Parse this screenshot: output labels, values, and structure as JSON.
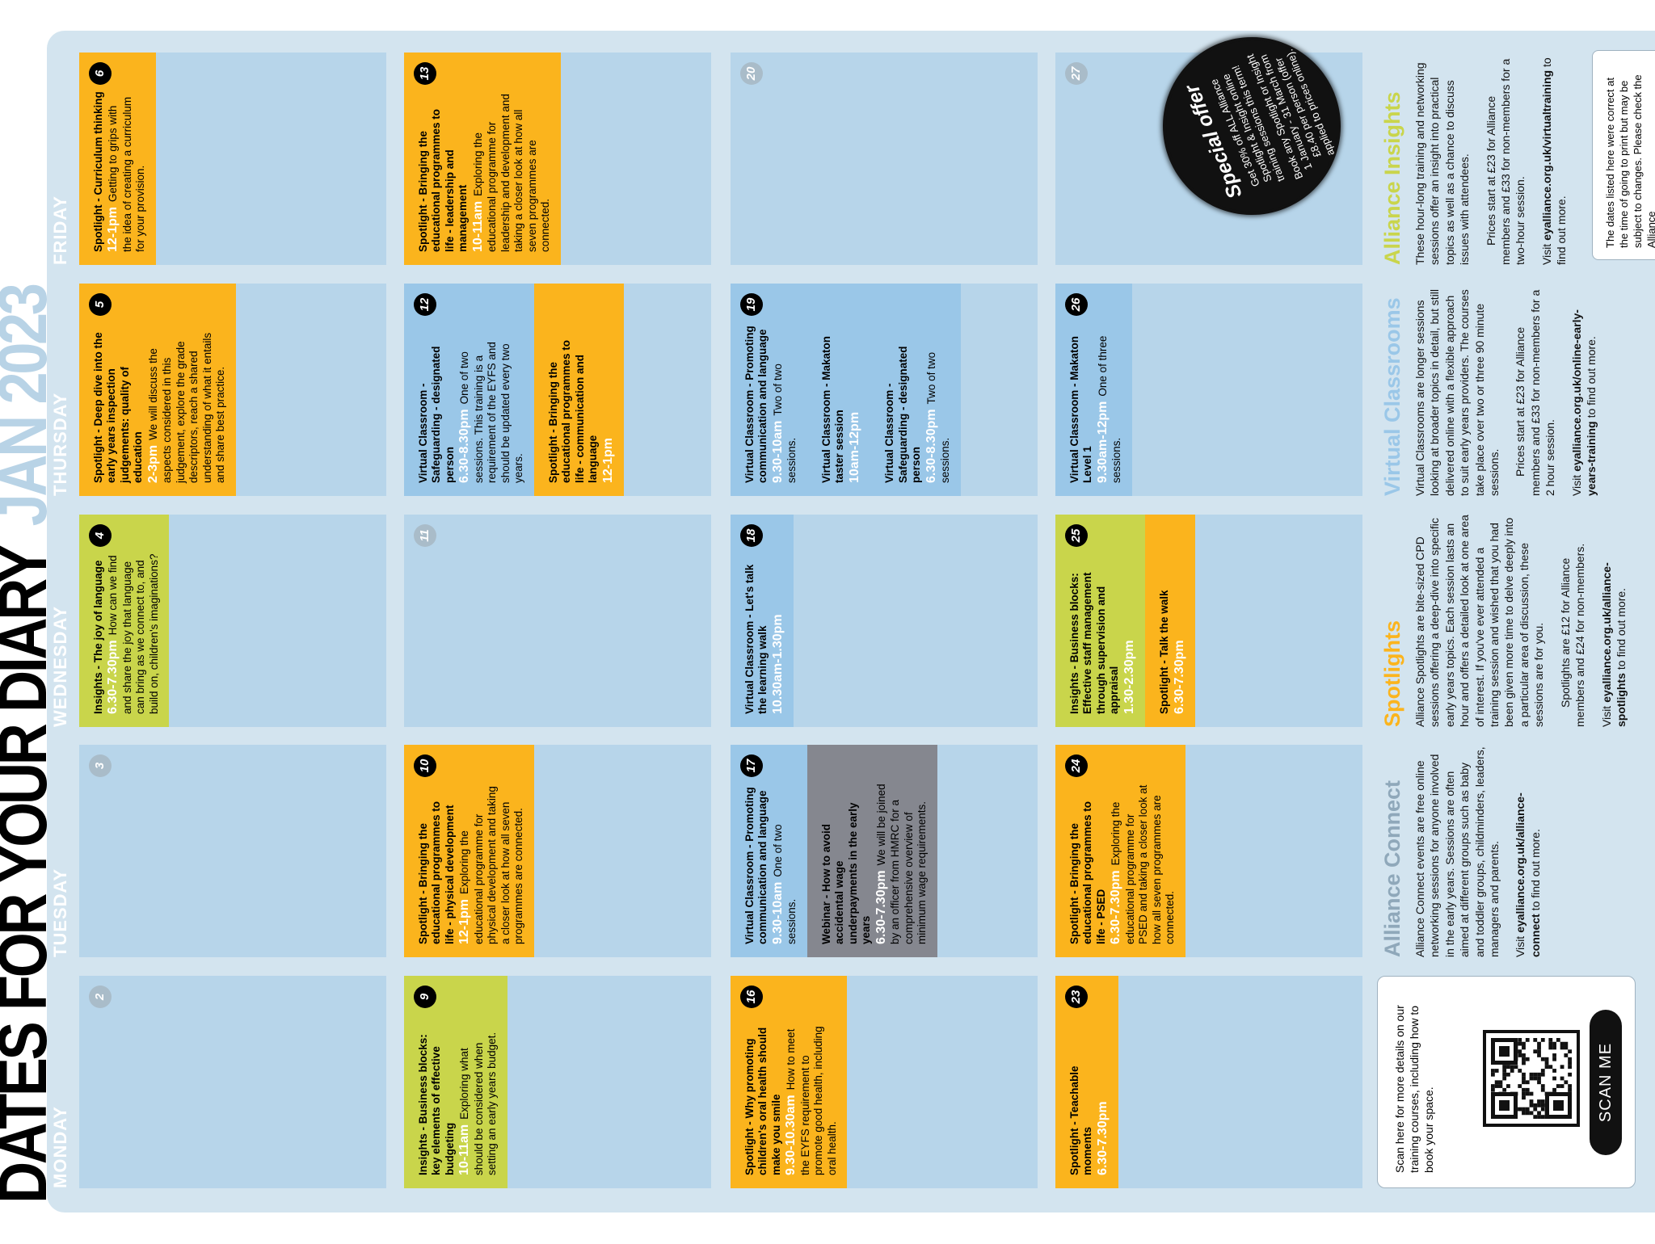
{
  "title": "DATES FOR YOUR DIARY",
  "title_date": "JAN 2023",
  "days": [
    "MONDAY",
    "TUESDAY",
    "WEDNESDAY",
    "THURSDAY",
    "FRIDAY"
  ],
  "weeks": [
    {
      "days": [
        {
          "date": 2,
          "events": []
        },
        {
          "date": 3,
          "events": []
        },
        {
          "date": 4,
          "events": [
            {
              "color": "#c9d54b",
              "title": "Insights - The joy of language",
              "time": "6.30-7.30pm",
              "desc": "How can we find and share the joy that language can bring as we connect to, and build on, children's imaginations?"
            }
          ]
        },
        {
          "date": 5,
          "events": [
            {
              "color": "#fbb41d",
              "title": "Spotlight - Deep dive into the early years inspection judgements: quality of education",
              "time": "2-3pm",
              "desc": "We will discuss the aspects considered in this judgement, explore the grade descriptors, reach a shared understanding of what it entails and share best practice."
            }
          ]
        },
        {
          "date": 6,
          "events": [
            {
              "color": "#fbb41d",
              "title": "Spotlight - Curriculum thinking",
              "time": "12-1pm",
              "desc": "Getting to grips with the idea of creating a curriculum for your provision."
            }
          ]
        }
      ]
    },
    {
      "days": [
        {
          "date": 9,
          "events": [
            {
              "color": "#c9d54b",
              "title": "Insights - Business blocks: key elements of effective budgeting",
              "time": "10-11am",
              "desc": "Exploring what should be considered when setting an early years budget."
            }
          ]
        },
        {
          "date": 10,
          "events": [
            {
              "color": "#fbb41d",
              "title": "Spotlight - Bringing the educational programmes to life - physical development",
              "time": "12-1pm",
              "desc": "Exploring the educational programme for physical development and taking a closer look at how all seven programmes are connected."
            }
          ]
        },
        {
          "date": 11,
          "events": []
        },
        {
          "date": 12,
          "events": [
            {
              "color": "#9ac7e8",
              "title": "Virtual Classroom - Safeguarding - designated person",
              "time": "6.30-8.30pm",
              "desc": "One of two sessions. This training is a requirement of the EYFS and should be updated every two years."
            },
            {
              "color": "#fbb41d",
              "title": "Spotlight - Bringing the educational programmes to life - communication and language",
              "time": "12-1pm"
            }
          ]
        },
        {
          "date": 13,
          "events": [
            {
              "color": "#fbb41d",
              "title": "Spotlight - Bringing the educational programmes to life - leadership and management",
              "time": "10-11am",
              "desc": "Exploring the educational programme for leadership and development and taking a closer look at how all seven programmes are connected."
            }
          ]
        }
      ]
    },
    {
      "days": [
        {
          "date": 16,
          "events": [
            {
              "color": "#fbb41d",
              "title": "Spotlight - Why promoting children's oral health should make you smile",
              "time": "9.30-10.30am",
              "desc": "How to meet the EYFS requirement to promote good health, including oral health."
            }
          ]
        },
        {
          "date": 17,
          "events": [
            {
              "color": "#9ac7e8",
              "title": "Virtual Classroom - Promoting communication and language",
              "time": "9.30-10am",
              "desc": "One of two sessions."
            },
            {
              "color": "#85878f",
              "title": "Webinar - How to avoid accidental wage underpayments in the early years",
              "time": "6.30-7.30pm",
              "desc": "We will be joined by an officer from HMRC for a comprehensive overview of minimum wage requirements."
            }
          ]
        },
        {
          "date": 18,
          "events": [
            {
              "color": "#9ac7e8",
              "title": "Virtual Classroom - Let's talk the learning walk",
              "time": "10.30am-1.30pm"
            }
          ]
        },
        {
          "date": 19,
          "events": [
            {
              "color": "#9ac7e8",
              "title": "Virtual Classroom - Promoting communication and language",
              "time": "9.30-10am",
              "desc": "Two of two sessions."
            },
            {
              "color": "#9ac7e8",
              "title": "Virtual Classroom - Makaton taster session",
              "time": "10am-12pm"
            },
            {
              "color": "#9ac7e8",
              "title": "Virtual Classroom - Safeguarding - designated person",
              "time": "6.30-8.30pm",
              "desc": "Two of two sessions."
            }
          ]
        },
        {
          "date": 20,
          "events": []
        }
      ]
    },
    {
      "days": [
        {
          "date": 23,
          "events": [
            {
              "color": "#fbb41d",
              "title": "Spotlight - Teachable moments",
              "time": "6.30-7.30pm"
            }
          ]
        },
        {
          "date": 24,
          "events": [
            {
              "color": "#fbb41d",
              "title": "Spotlight - Bringing the educational programmes to life - PSED",
              "time": "6.30-7.30pm",
              "desc": "Exploring the educational programme for PSED and taking a closer look at how all seven programmes are connected."
            }
          ]
        },
        {
          "date": 25,
          "events": [
            {
              "color": "#c9d54b",
              "title": "Insights - Business blocks: Effective staff management through supervision and appraisal",
              "time": "1.30-2.30pm"
            },
            {
              "color": "#fbb41d",
              "title": "Spotlight - Talk the walk",
              "time": "6.30-7.30pm"
            }
          ]
        },
        {
          "date": 26,
          "events": [
            {
              "color": "#9ac7e8",
              "title": "Virtual Classroom - Makaton Level 1",
              "time": "9.30am-12pm",
              "desc": "One of three sessions."
            }
          ]
        },
        {
          "date": 27,
          "events": []
        }
      ]
    }
  ],
  "offer": {
    "title": "Special offer",
    "line1": "Get 30% off ALL Alliance Spotlight & Insight online training sessions this term!",
    "line2": "Book any Spotlight or Insight 1 January - 31 March from £8.40 per person (offer applied to prices online)."
  },
  "qr": {
    "text": "Scan here for more details on our training courses, including how to book your space.",
    "button": "SCAN ME"
  },
  "info": [
    {
      "heading": "Alliance Connect",
      "color": "#8fa8ba",
      "body": "Alliance Connect events are free online networking sessions for anyone involved in the early years. Sessions are often aimed at different groups such as baby and toddler groups, childminders, leaders, managers and parents.",
      "visit": [
        "Visit",
        "eyalliance.org.uk/alliance-connect",
        "to find out more."
      ]
    },
    {
      "heading": "Spotlights",
      "color": "#fbb41d",
      "body": "Alliance Spotlights are bite-sized CPD sessions offering a deep-dive into specific early years topics. Each session lasts an hour and offers a detailed look at one area of interest. If you've ever attended a training session and wished that you had been given more time to delve deeply into a particular area of discussion, these sessions are for you.",
      "price": "Spotlights are £12 for Alliance members and £24 for non-members.",
      "visit": [
        "Visit",
        "eyalliance.org.uk/alliance-spotlights",
        "to find out more."
      ]
    },
    {
      "heading": "Virtual Classrooms",
      "color": "#9ac7e8",
      "body": "Virtual Classrooms are longer sessions looking at broader topics in detail, but still delivered online with a flexible approach to suit early years providers. The courses take place over two or three 90 minute sessions.",
      "price": "Prices start at £23 for Alliance members and £33 for non-members for a 2 hour session.",
      "visit": [
        "Visit",
        "eyalliance.org.uk/online-early-years-training",
        "to find out more."
      ]
    },
    {
      "heading": "Alliance Insights",
      "color": "#c9d54b",
      "body": "These hour-long training and networking sessions offer an insight into practical topics as well as a chance to discuss issues with attendees.",
      "price": "Prices start at £23 for Alliance members and £33 for non-members for a two-hour session.",
      "visit": [
        "Visit",
        "eyalliance.org.uk/virtualtraining",
        "to find out more."
      ]
    }
  ],
  "disclaimer": "The dates listed here were correct at the time of going to print but may be subject to changes. Please check the Alliance"
}
